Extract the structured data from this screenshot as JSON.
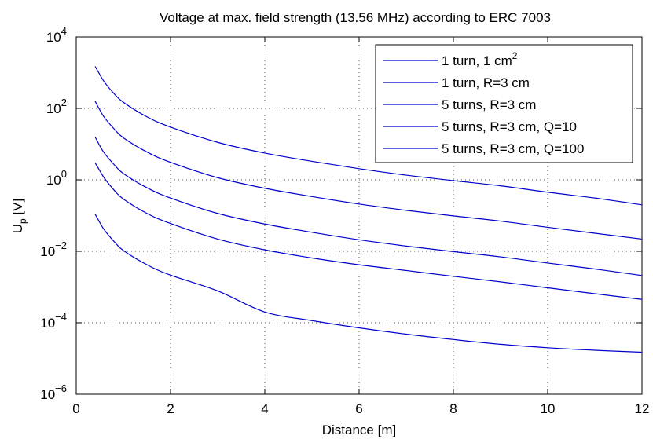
{
  "chart_data": {
    "type": "line",
    "title": "Voltage at max. field strength (13.56 MHz) according to ERC 7003",
    "xlabel": "Distance [m]",
    "ylabel": {
      "main": "U",
      "sub": "p",
      "unit": " [V]"
    },
    "xlim": [
      0,
      12
    ],
    "ylim": [
      1e-06,
      10000.0
    ],
    "yscale": "log",
    "grid": true,
    "legend_position": "top-right",
    "line_color": "#0000cc",
    "x_ticks": [
      "0",
      "2",
      "4",
      "6",
      "8",
      "10",
      "12"
    ],
    "y_ticks": [
      {
        "base": "10",
        "exp": "−6"
      },
      {
        "base": "10",
        "exp": "−4"
      },
      {
        "base": "10",
        "exp": "−2"
      },
      {
        "base": "10",
        "exp": "0"
      },
      {
        "base": "10",
        "exp": "2"
      },
      {
        "base": "10",
        "exp": "4"
      }
    ],
    "x": [
      0.4,
      0.5,
      0.6,
      0.8,
      1,
      1.5,
      2,
      3,
      4,
      5,
      6,
      7,
      8,
      9,
      10,
      11,
      12
    ],
    "series": [
      {
        "name": "1 turn, 1 cm",
        "name_sup": "2",
        "values": [
          1500,
          880,
          540,
          260,
          148,
          58,
          30,
          11.2,
          5.6,
          3.3,
          2.05,
          1.35,
          0.95,
          0.68,
          0.45,
          0.31,
          0.2
        ]
      },
      {
        "name": "1 turn, R=3 cm",
        "values": [
          160,
          90,
          55,
          27,
          15,
          6,
          3.1,
          1.15,
          0.58,
          0.34,
          0.21,
          0.14,
          0.098,
          0.07,
          0.047,
          0.032,
          0.022
        ]
      },
      {
        "name": "5 turns, R=3 cm",
        "values": [
          16,
          9,
          5.5,
          2.7,
          1.5,
          0.6,
          0.31,
          0.115,
          0.058,
          0.034,
          0.021,
          0.014,
          0.0098,
          0.007,
          0.0047,
          0.0032,
          0.0021
        ]
      },
      {
        "name": "5 turns, R=3 cm, Q=10",
        "values": [
          3.0,
          1.8,
          1.1,
          0.52,
          0.29,
          0.115,
          0.06,
          0.022,
          0.011,
          0.0065,
          0.0042,
          0.0029,
          0.002,
          0.0014,
          0.00095,
          0.00065,
          0.00045
        ]
      },
      {
        "name": "5 turns, R=3 cm, Q=100",
        "values": [
          0.11,
          0.064,
          0.039,
          0.019,
          0.0105,
          0.0042,
          0.00215,
          0.00078,
          0.0002,
          0.000115,
          7.2e-05,
          4.8e-05,
          3.4e-05,
          2.5e-05,
          2e-05,
          1.7e-05,
          1.5e-05
        ]
      }
    ]
  }
}
